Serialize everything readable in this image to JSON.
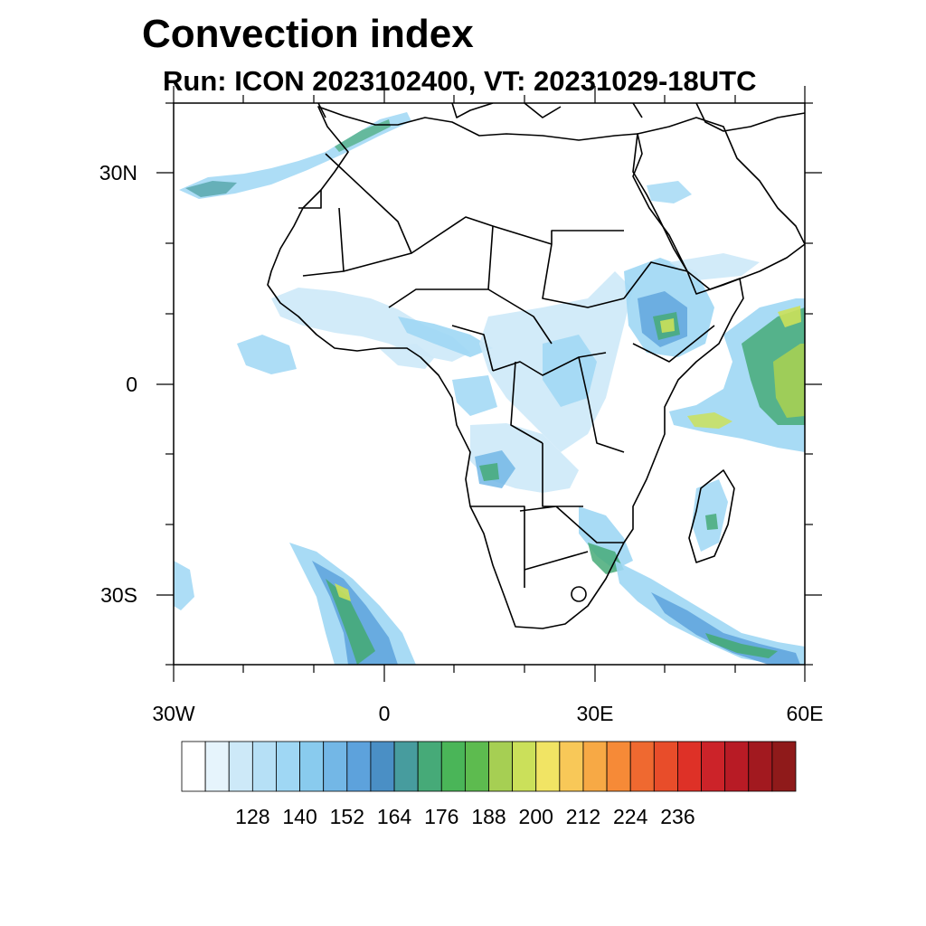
{
  "title": "Convection index",
  "subtitle": "Run: ICON 2023102400,  VT: 20231029-18UTC",
  "map": {
    "extent": {
      "lon": [
        -30,
        60
      ],
      "lat": [
        -40,
        40
      ]
    },
    "lat_labels": [
      {
        "lat": 30,
        "text": "30N"
      },
      {
        "lat": 0,
        "text": "0"
      },
      {
        "lat": -30,
        "text": "30S"
      }
    ],
    "lon_labels": [
      {
        "lon": -30,
        "text": "30W"
      },
      {
        "lon": 0,
        "text": "0"
      },
      {
        "lon": 30,
        "text": "30E"
      },
      {
        "lon": 60,
        "text": "60E"
      }
    ]
  },
  "colorbar": {
    "colors": [
      "#ffffff",
      "#e6f4fc",
      "#cde9f8",
      "#b6e0f6",
      "#9fd7f4",
      "#89cbee",
      "#73b7e6",
      "#5da2dc",
      "#4a8fc5",
      "#479c9e",
      "#46aa78",
      "#4ab558",
      "#5dbb4f",
      "#a6cf53",
      "#cbe05a",
      "#f1e464",
      "#f8c858",
      "#f7a945",
      "#f68a37",
      "#ef6930",
      "#e84d2a",
      "#de3127",
      "#cc2329",
      "#b81b25",
      "#a2191f",
      "#8f1a1a"
    ],
    "tick_labels": [
      "128",
      "140",
      "152",
      "164",
      "176",
      "188",
      "200",
      "212",
      "224",
      "236"
    ]
  }
}
